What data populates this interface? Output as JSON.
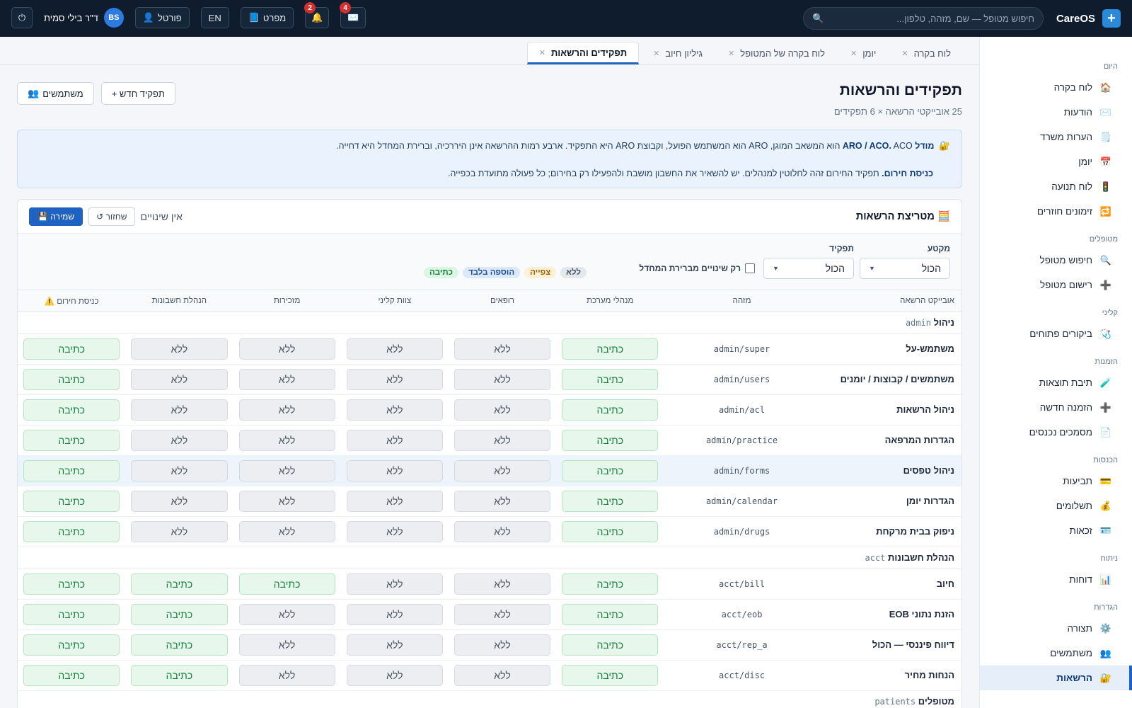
{
  "topbar": {
    "brand": "CareOS",
    "search_placeholder": "חיפוש מטופל — שם, מזהה, טלפון...",
    "mail_badge": "4",
    "bell_badge": "2",
    "spec_label": "מפרט",
    "lang_label": "EN",
    "portal_label": "פורטל",
    "user_name": "ד\"ר בילי סמית",
    "user_initials": "BS"
  },
  "sidebar": [
    {
      "title": "היום",
      "items": [
        {
          "label": "לוח בקרה",
          "icon": "🏠"
        },
        {
          "label": "הודעות",
          "icon": "✉️"
        },
        {
          "label": "הערות משרד",
          "icon": "🗒️"
        },
        {
          "label": "יומן",
          "icon": "📅"
        },
        {
          "label": "לוח תנועה",
          "icon": "🚦"
        },
        {
          "label": "זימונים חוזרים",
          "icon": "🔁"
        }
      ]
    },
    {
      "title": "מטופלים",
      "items": [
        {
          "label": "חיפוש מטופל",
          "icon": "🔍"
        },
        {
          "label": "רישום מטופל",
          "icon": "➕"
        }
      ]
    },
    {
      "title": "קליני",
      "items": [
        {
          "label": "ביקורים פתוחים",
          "icon": "🩺"
        }
      ]
    },
    {
      "title": "הזמנות",
      "items": [
        {
          "label": "תיבת תוצאות",
          "icon": "🧪"
        },
        {
          "label": "הזמנה חדשה",
          "icon": "➕"
        },
        {
          "label": "מסמכים נכנסים",
          "icon": "📄"
        }
      ]
    },
    {
      "title": "הכנסות",
      "items": [
        {
          "label": "תביעות",
          "icon": "💳"
        },
        {
          "label": "תשלומים",
          "icon": "💰"
        },
        {
          "label": "זכאות",
          "icon": "🪪"
        }
      ]
    },
    {
      "title": "ניתוח",
      "items": [
        {
          "label": "דוחות",
          "icon": "📊"
        }
      ]
    },
    {
      "title": "הגדרות",
      "items": [
        {
          "label": "תצורה",
          "icon": "⚙️"
        },
        {
          "label": "משתמשים",
          "icon": "👥"
        },
        {
          "label": "הרשאות",
          "icon": "🔐",
          "active": true
        }
      ]
    }
  ],
  "tabs": [
    {
      "label": "לוח בקרה"
    },
    {
      "label": "יומן"
    },
    {
      "label": "לוח בקרה של המטופל"
    },
    {
      "label": "גיליון חיוב"
    },
    {
      "label": "תפקידים והרשאות",
      "active": true
    }
  ],
  "page": {
    "title": "תפקידים והרשאות",
    "subtitle": "25 אובייקטי הרשאה × 6 תפקידים",
    "new_role": "+ תפקיד חדש",
    "users_btn": "משתמשים"
  },
  "info": {
    "line1_bold": "מודל ARO / ACO.",
    "line1": " ACO הוא המשאב המוגן, ARO הוא המשתמש הפועל, וקבוצת ARO היא התפקיד. ארבע רמות ההרשאה אינן היררכיה, וברירת המחדל היא דחייה.",
    "line2_bold": "כניסת חירום.",
    "line2": " תפקיד החירום זהה לחלוטין למנהלים. יש להשאיר את החשבון מושבת ולהפעילו רק בחירום; כל פעולה מתועדת בכפייה."
  },
  "matrix": {
    "title": "מטריצת הרשאות",
    "no_changes": "אין שינויים",
    "revert": "↺ שחזור",
    "save": "💾 שמירה",
    "filter_section_label": "מקטע",
    "filter_section_value": "הכול",
    "filter_role_label": "תפקיד",
    "filter_role_value": "הכול",
    "only_changes": "רק שינויים מברירת המחדל",
    "legend": {
      "none": "ללא",
      "view": "צפייה",
      "add": "הוספה בלבד",
      "write": "כתיבה"
    },
    "columns": [
      "אובייקט הרשאה",
      "מזהה",
      "מנהלי מערכת",
      "רופאים",
      "צוות קליני",
      "מזכירות",
      "הנהלת חשבונות",
      "כניסת חירום ⚠️"
    ],
    "groups": [
      {
        "code": "admin",
        "name": "ניהול",
        "rows": [
          {
            "name": "משתמש-על",
            "id": "admin/super",
            "perms": [
              "כתיבה",
              "ללא",
              "ללא",
              "ללא",
              "ללא",
              "כתיבה"
            ]
          },
          {
            "name": "משתמשים / קבוצות / יומנים",
            "id": "admin/users",
            "perms": [
              "כתיבה",
              "ללא",
              "ללא",
              "ללא",
              "ללא",
              "כתיבה"
            ]
          },
          {
            "name": "ניהול הרשאות",
            "id": "admin/acl",
            "perms": [
              "כתיבה",
              "ללא",
              "ללא",
              "ללא",
              "ללא",
              "כתיבה"
            ]
          },
          {
            "name": "הגדרות המרפאה",
            "id": "admin/practice",
            "perms": [
              "כתיבה",
              "ללא",
              "ללא",
              "ללא",
              "ללא",
              "כתיבה"
            ]
          },
          {
            "name": "ניהול טפסים",
            "id": "admin/forms",
            "perms": [
              "כתיבה",
              "ללא",
              "ללא",
              "ללא",
              "ללא",
              "כתיבה"
            ],
            "highlight": true
          },
          {
            "name": "הגדרות יומן",
            "id": "admin/calendar",
            "perms": [
              "כתיבה",
              "ללא",
              "ללא",
              "ללא",
              "ללא",
              "כתיבה"
            ]
          },
          {
            "name": "ניפוק בבית מרקחת",
            "id": "admin/drugs",
            "perms": [
              "כתיבה",
              "ללא",
              "ללא",
              "ללא",
              "ללא",
              "כתיבה"
            ]
          }
        ]
      },
      {
        "code": "acct",
        "name": "הנהלת חשבונות",
        "rows": [
          {
            "name": "חיוב",
            "id": "acct/bill",
            "perms": [
              "כתיבה",
              "ללא",
              "ללא",
              "כתיבה",
              "כתיבה",
              "כתיבה"
            ]
          },
          {
            "name": "הזנת נתוני EOB",
            "id": "acct/eob",
            "perms": [
              "כתיבה",
              "ללא",
              "ללא",
              "ללא",
              "כתיבה",
              "כתיבה"
            ]
          },
          {
            "name": "דיווח פיננסי — הכול",
            "id": "acct/rep_a",
            "perms": [
              "כתיבה",
              "ללא",
              "ללא",
              "ללא",
              "כתיבה",
              "כתיבה"
            ]
          },
          {
            "name": "הנחות מחיר",
            "id": "acct/disc",
            "perms": [
              "כתיבה",
              "ללא",
              "ללא",
              "ללא",
              "כתיבה",
              "כתיבה"
            ]
          }
        ]
      },
      {
        "code": "patients",
        "name": "מטופלים",
        "rows": []
      }
    ]
  }
}
